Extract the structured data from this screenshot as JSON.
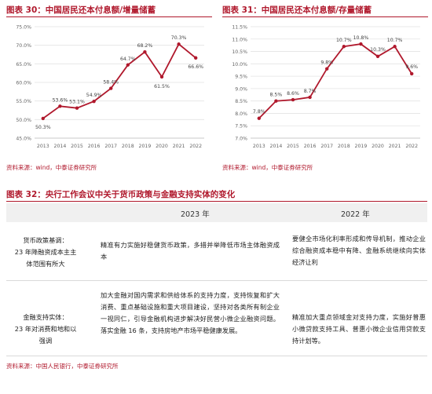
{
  "figures": [
    {
      "id": "fig30",
      "title": "图表 30：中国居民还本付息额/增量储蓄",
      "source": "资料来源：wind，中泰证券研究所"
    },
    {
      "id": "fig31",
      "title": "图表 31：中国居民还本付息额/存量储蓄",
      "source": "资料来源：wind，中泰证券研究所"
    }
  ],
  "chart_data": [
    {
      "type": "line",
      "title": "图表 30：中国居民还本付息额/增量储蓄",
      "categories": [
        "2013",
        "2014",
        "2015",
        "2016",
        "2017",
        "2018",
        "2019",
        "2020",
        "2021",
        "2022"
      ],
      "y_tick_labels": [
        "45.0%",
        "50.0%",
        "55.0%",
        "60.0%",
        "65.0%",
        "70.0%",
        "75.0%"
      ],
      "data_labels": [
        "50.3%",
        "53.6%",
        "53.1%",
        "54.9%",
        "58.4%",
        "64.7%",
        "68.2%",
        "61.5%",
        "70.3%",
        "66.6%"
      ],
      "series": [
        {
          "values": [
            50.3,
            53.6,
            53.1,
            54.9,
            58.4,
            64.7,
            68.2,
            61.5,
            70.3,
            66.6
          ],
          "color": "#b0182c"
        }
      ],
      "ylim": [
        45,
        75
      ],
      "grid": true,
      "legend": "none"
    },
    {
      "type": "line",
      "title": "图表 31：中国居民还本付息额/存量储蓄",
      "categories": [
        "2013",
        "2014",
        "2015",
        "2016",
        "2017",
        "2018",
        "2019",
        "2020",
        "2021",
        "2022"
      ],
      "y_tick_labels": [
        "7.0%",
        "7.5%",
        "8.0%",
        "8.5%",
        "9.0%",
        "9.5%",
        "10.0%",
        "10.5%",
        "11.0%",
        "11.5%"
      ],
      "data_labels": [
        "7.8%",
        "8.5%",
        "8.6%",
        "8.7%",
        "9.8%",
        "10.7%",
        "10.8%",
        "10.3%",
        "10.7%",
        "9.6%"
      ],
      "series": [
        {
          "values": [
            7.8,
            8.5,
            8.55,
            8.65,
            9.8,
            10.7,
            10.8,
            10.3,
            10.7,
            9.6
          ],
          "color": "#b0182c"
        }
      ],
      "ylim": [
        7.0,
        11.5
      ],
      "grid": true,
      "legend": "none"
    }
  ],
  "table": {
    "title": "图表 32：央行工作会议中关于货币政策与金融支持实体的变化",
    "col_2023": "2023 年",
    "col_2022": "2022 年",
    "rows": [
      {
        "topic": [
          "货币政策基调：",
          "23 年降融资成本主主",
          "体范围有所大"
        ],
        "y2023": "精准有力实施好稳健货币政策，多措并举降低市场主体融资成本",
        "y2022": "要健全市场化利率形成和传导机制，推动企业综合融资成本稳中有降、金融系统继续向实体经济让利"
      },
      {
        "topic": [
          "金融支持实体：",
          "23 年对消费和地和以",
          "强调"
        ],
        "y2023": "加大金融对国内需求和供给体系的支持力度，支持恢复和扩大消费、重点基础设施和重大项目建设，坚持对各类所有制企业一视同仁，引导金融机构进步解决好民营小微企业融资问题。落实金融 16 条，支持房地产市场平稳健康发展。",
        "y2022": "精准加大重点领域金对支持力度，实施好普惠小微贷款支持工具、普惠小微企业信用贷款支持计划等。"
      }
    ],
    "source": "资料来源：中国人民银行，中泰证券研究所"
  },
  "colors": {
    "accent": "#b0182c",
    "grid": "#d9d9d9",
    "header_bg": "#f0f0f0"
  }
}
